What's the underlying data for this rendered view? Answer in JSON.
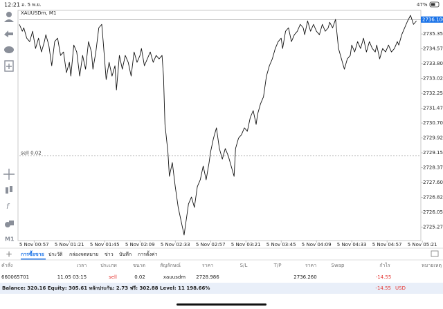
{
  "status_bar": {
    "time": "12:21",
    "date": "อ. 5 พ.ย.",
    "battery": "47%"
  },
  "toolbar": {
    "timeframe": "M1"
  },
  "chart_data": {
    "type": "line",
    "title": "XAUUSDm, M1",
    "color": "#111111",
    "xlim": [
      -10,
      263
    ],
    "ylim": [
      2724.57,
      2736.58
    ],
    "grid": false,
    "xticks": [
      {
        "value": 0,
        "label": "5 Nov 00:57"
      },
      {
        "value": 24,
        "label": "5 Nov 01:21"
      },
      {
        "value": 48,
        "label": "5 Nov 01:45"
      },
      {
        "value": 72,
        "label": "5 Nov 02:09"
      },
      {
        "value": 96,
        "label": "5 Nov 02:33"
      },
      {
        "value": 120,
        "label": "5 Nov 02:57"
      },
      {
        "value": 144,
        "label": "5 Nov 03:21"
      },
      {
        "value": 168,
        "label": "5 Nov 03:45"
      },
      {
        "value": 192,
        "label": "5 Nov 04:09"
      },
      {
        "value": 216,
        "label": "5 Nov 04:33"
      },
      {
        "value": 240,
        "label": "5 Nov 04:57"
      },
      {
        "value": 264,
        "label": "5 Nov 05:21"
      }
    ],
    "yticks": [
      {
        "value": 2735.35,
        "label": "2735.350"
      },
      2734.575,
      {
        "value": 2733.8,
        "label": "2733.800"
      },
      2733.025,
      {
        "value": 2732.25,
        "label": "2732.250"
      },
      2731.475,
      {
        "value": 2730.7,
        "label": "2730.700"
      },
      2729.925,
      {
        "value": 2729.15,
        "label": "2729.150"
      },
      2728.375,
      {
        "value": 2727.6,
        "label": "2727.600"
      },
      2726.825,
      {
        "value": 2726.05,
        "label": "2726.050"
      },
      2725.275
    ],
    "current_price": {
      "value": 2736.1,
      "label": "2736.100"
    },
    "series": [
      {
        "name": "XAUUSDm",
        "x": [
          -10,
          -8,
          -7,
          -5,
          -3,
          -1,
          1,
          3,
          5,
          7,
          8,
          10,
          12,
          14,
          16,
          18,
          20,
          22,
          24,
          25,
          27,
          29,
          31,
          33,
          35,
          37,
          39,
          40,
          42,
          44,
          46,
          47,
          49,
          51,
          53,
          55,
          56,
          58,
          60,
          62,
          64,
          66,
          68,
          70,
          72,
          73,
          75,
          77,
          79,
          81,
          83,
          85,
          87,
          88,
          89,
          91,
          92,
          94,
          96,
          98,
          100,
          102,
          104,
          105,
          107,
          109,
          111,
          113,
          115,
          117,
          119,
          120,
          122,
          124,
          126,
          128,
          130,
          132,
          134,
          136,
          137,
          139,
          141,
          143,
          145,
          147,
          149,
          151,
          152,
          154,
          156,
          158,
          160,
          162,
          164,
          166,
          168,
          169,
          171,
          173,
          175,
          177,
          179,
          181,
          183,
          184,
          186,
          188,
          190,
          192,
          194,
          196,
          198,
          200,
          201,
          203,
          205,
          207,
          209,
          211,
          213,
          215,
          216,
          218,
          220,
          222,
          224,
          226,
          228,
          230,
          232,
          233,
          235,
          237,
          239,
          241,
          243,
          245,
          247,
          248,
          250,
          252,
          254,
          256,
          258,
          260
        ],
        "values": [
          2735.85,
          2735.49,
          2735.67,
          2735.13,
          2734.95,
          2735.49,
          2734.59,
          2735.13,
          2734.41,
          2734.95,
          2735.31,
          2734.77,
          2733.69,
          2734.95,
          2735.13,
          2734.23,
          2734.41,
          2733.33,
          2733.87,
          2733.15,
          2734.77,
          2734.41,
          2733.15,
          2734.23,
          2733.51,
          2734.95,
          2734.41,
          2733.51,
          2734.41,
          2735.67,
          2735.85,
          2734.95,
          2732.97,
          2733.87,
          2733.15,
          2733.69,
          2732.43,
          2734.23,
          2733.51,
          2734.23,
          2733.87,
          2733.15,
          2734.41,
          2733.87,
          2734.23,
          2734.59,
          2733.69,
          2734.05,
          2734.41,
          2733.87,
          2734.23,
          2734.05,
          2734.23,
          2733.15,
          2730.63,
          2729.19,
          2727.92,
          2728.64,
          2727.38,
          2726.3,
          2725.58,
          2724.86,
          2725.94,
          2726.48,
          2726.84,
          2726.3,
          2727.38,
          2727.74,
          2728.46,
          2727.74,
          2728.64,
          2729.19,
          2729.91,
          2730.45,
          2729.37,
          2728.82,
          2729.37,
          2729.0,
          2728.46,
          2727.92,
          2729.37,
          2729.91,
          2730.09,
          2730.45,
          2730.27,
          2730.99,
          2731.35,
          2730.63,
          2731.17,
          2731.71,
          2732.07,
          2733.15,
          2733.69,
          2734.05,
          2734.59,
          2734.95,
          2735.13,
          2734.59,
          2735.49,
          2735.67,
          2734.95,
          2735.31,
          2735.49,
          2735.85,
          2735.67,
          2735.31,
          2736.03,
          2735.49,
          2735.85,
          2735.49,
          2735.31,
          2735.85,
          2735.49,
          2735.67,
          2735.96,
          2735.67,
          2736.11,
          2734.59,
          2734.05,
          2733.51,
          2734.05,
          2734.23,
          2734.77,
          2734.41,
          2734.95,
          2734.59,
          2735.13,
          2734.41,
          2734.95,
          2734.59,
          2734.41,
          2734.77,
          2734.05,
          2734.59,
          2734.41,
          2734.77,
          2734.41,
          2734.59,
          2734.95,
          2734.77,
          2735.31,
          2735.67,
          2736.03,
          2736.32,
          2735.85,
          2736.03
        ]
      }
    ]
  },
  "tabs": [
    "การซื้อขาย",
    "ประวัติ",
    "กล่องจดหมาย",
    "ข่าว",
    "บันทึก",
    "การตั้งค่า"
  ],
  "table": {
    "headers": [
      "คำสั่ง",
      "เวลา",
      "ประเภท",
      "ขนาด",
      "สัญลักษณ์",
      "ราคา",
      "S/L",
      "T/P",
      "ราคา",
      "Swap",
      "กำไร",
      "หมายเหตุ"
    ],
    "trade": {
      "order": 660065701,
      "time": "11.05 03:15",
      "type": "sell",
      "volume": 0.02,
      "symbol": "xauusdm",
      "open_price": 2728.986,
      "price": "2736.260",
      "profit": -14.55
    }
  },
  "summary": {
    "text": "Balance: 320.16 Equity: 305.61 หลักประกัน: 2.73 ฟรี: 302.88 Level: 11 198.66%",
    "total_profit": -14.55,
    "currency": "USD"
  }
}
